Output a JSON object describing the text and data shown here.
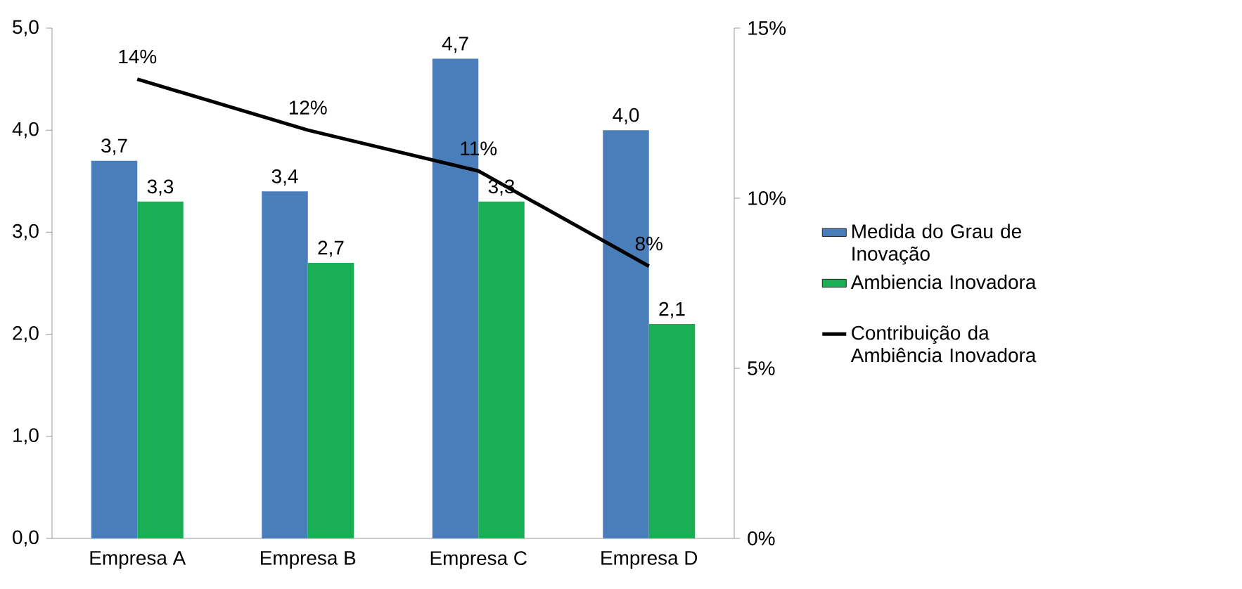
{
  "chart_data": {
    "type": "bar",
    "categories": [
      "Empresa A",
      "Empresa B",
      "Empresa C",
      "Empresa D"
    ],
    "series": [
      {
        "name": "Medida do Grau de Inovação",
        "color": "#4a7ebb",
        "values": [
          3.7,
          3.4,
          4.7,
          4.0
        ],
        "value_labels": [
          "3,7",
          "3,4",
          "4,7",
          "4,0"
        ]
      },
      {
        "name": "Ambiencia Inovadora",
        "color": "#1aaf54",
        "values": [
          3.3,
          2.7,
          3.3,
          2.1
        ],
        "value_labels": [
          "3,3",
          "2,7",
          "3,3",
          "2,1"
        ]
      },
      {
        "name": "Contribuição da Ambiência Inovadora",
        "type": "line",
        "axis": "y2",
        "color": "#000000",
        "values": [
          13.5,
          12.0,
          10.8,
          8.0
        ],
        "value_labels": [
          "14%",
          "12%",
          "11%",
          "8%"
        ]
      }
    ],
    "ylim": [
      0,
      5
    ],
    "yticks": [
      {
        "value": 0,
        "label": "0,0"
      },
      {
        "value": 1,
        "label": "1,0"
      },
      {
        "value": 2,
        "label": "2,0"
      },
      {
        "value": 3,
        "label": "3,0"
      },
      {
        "value": 4,
        "label": "4,0"
      },
      {
        "value": 5,
        "label": "5,0"
      }
    ],
    "y2lim": [
      0,
      15
    ],
    "y2ticks": [
      {
        "value": 0,
        "label": "0%"
      },
      {
        "value": 5,
        "label": "5%"
      },
      {
        "value": 10,
        "label": "10%"
      },
      {
        "value": 15,
        "label": "15%"
      }
    ],
    "legend": "right",
    "grid": false
  }
}
